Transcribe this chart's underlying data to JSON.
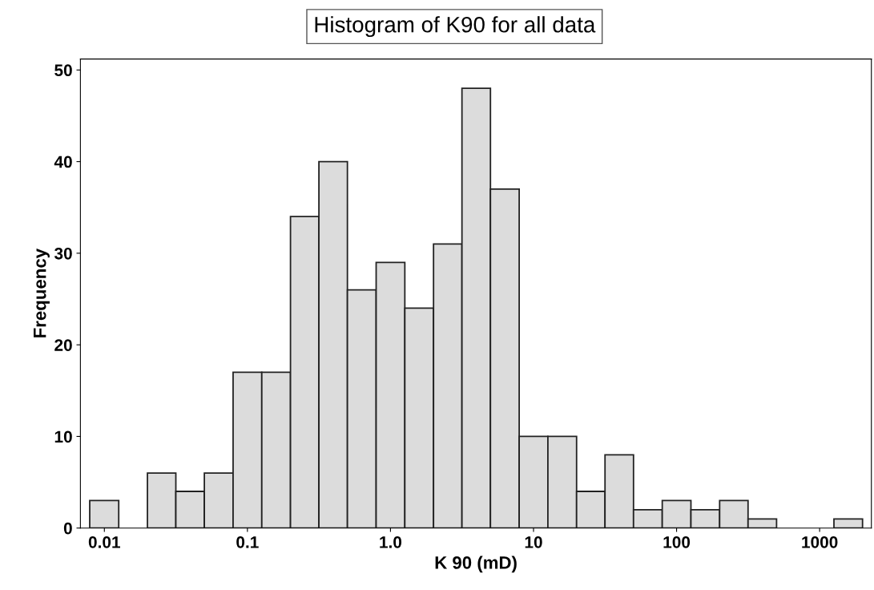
{
  "chart_data": {
    "type": "histogram",
    "title": "Histogram of K90 for all data",
    "xlabel": "K 90 (mD)",
    "ylabel": "Frequency",
    "bins": [
      0.0079,
      0.0126,
      0.02,
      0.0316,
      0.05,
      0.0794,
      0.126,
      0.2,
      0.316,
      0.5,
      0.794,
      1.26,
      2,
      3.16,
      5,
      7.94,
      12.6,
      20,
      31.6,
      50,
      79.4,
      126,
      200,
      316,
      500,
      1259,
      1995
    ],
    "values": [
      3,
      0,
      6,
      4,
      6,
      17,
      17,
      34,
      40,
      26,
      29,
      24,
      31,
      48,
      37,
      10,
      10,
      4,
      8,
      2,
      3,
      2,
      3,
      1,
      0,
      1
    ],
    "color": "#dcdcdc",
    "log": "x",
    "xlim": [
      0.0068,
      2300
    ],
    "xticks": [
      0.01,
      0.1,
      {
        "value": 1,
        "label": "1.0"
      },
      10,
      100,
      1000
    ],
    "ylim": [
      0,
      51.2
    ],
    "yticks": [
      0,
      10,
      20,
      30,
      40,
      50
    ],
    "grid": false
  }
}
